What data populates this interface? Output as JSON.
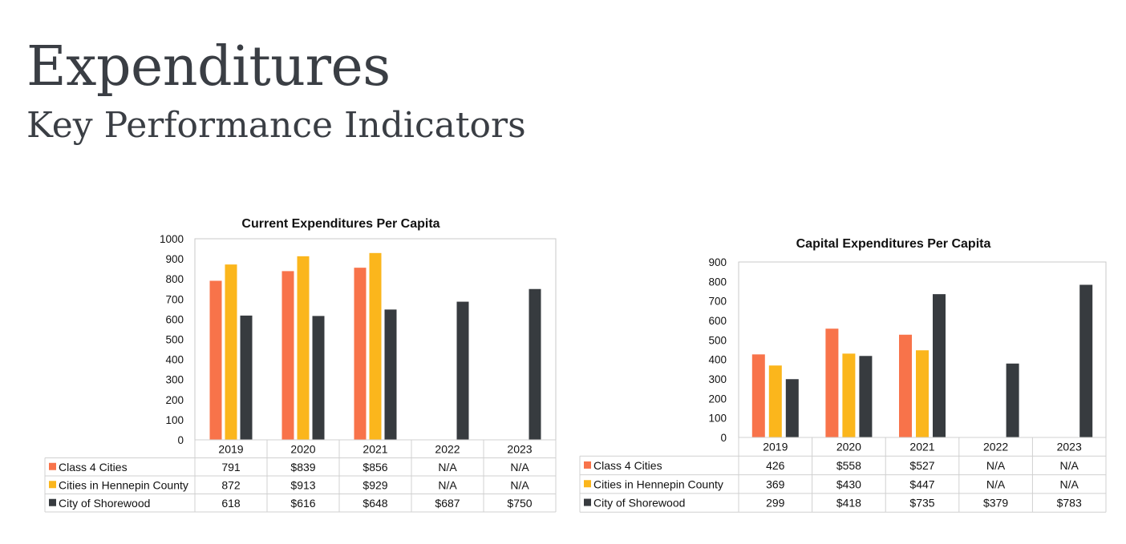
{
  "page": {
    "title": "Expenditures",
    "subtitle": "Key Performance Indicators"
  },
  "colors": {
    "class4": "#f8734a",
    "hennepin": "#fbb61c",
    "shorewood": "#373b3f"
  },
  "chart_data": [
    {
      "type": "bar",
      "title": "Current Expenditures Per Capita",
      "categories": [
        "2019",
        "2020",
        "2021",
        "2022",
        "2023"
      ],
      "ylim": [
        0,
        1000
      ],
      "yticks": [
        0,
        100,
        200,
        300,
        400,
        500,
        600,
        700,
        800,
        900,
        1000
      ],
      "grid": false,
      "legend": "data-table",
      "series": [
        {
          "name": "Class 4 Cities",
          "color": "#f8734a",
          "values": [
            791,
            839,
            856,
            null,
            null
          ],
          "labels": [
            "791",
            "$839",
            "$856",
            "N/A",
            "N/A"
          ]
        },
        {
          "name": "Cities in Hennepin County",
          "color": "#fbb61c",
          "values": [
            872,
            913,
            929,
            null,
            null
          ],
          "labels": [
            "872",
            "$913",
            "$929",
            "N/A",
            "N/A"
          ]
        },
        {
          "name": "City of Shorewood",
          "color": "#373b3f",
          "values": [
            618,
            616,
            648,
            687,
            750
          ],
          "labels": [
            "618",
            "$616",
            "$648",
            "$687",
            "$750"
          ]
        }
      ]
    },
    {
      "type": "bar",
      "title": "Capital Expenditures Per Capita",
      "categories": [
        "2019",
        "2020",
        "2021",
        "2022",
        "2023"
      ],
      "ylim": [
        0,
        900
      ],
      "yticks": [
        0,
        100,
        200,
        300,
        400,
        500,
        600,
        700,
        800,
        900
      ],
      "grid": false,
      "legend": "data-table",
      "series": [
        {
          "name": "Class 4 Cities",
          "color": "#f8734a",
          "values": [
            426,
            558,
            527,
            null,
            null
          ],
          "labels": [
            "426",
            "$558",
            "$527",
            "N/A",
            "N/A"
          ]
        },
        {
          "name": "Cities in Hennepin County",
          "color": "#fbb61c",
          "values": [
            369,
            430,
            447,
            null,
            null
          ],
          "labels": [
            "369",
            "$430",
            "$447",
            "N/A",
            "N/A"
          ]
        },
        {
          "name": "City of Shorewood",
          "color": "#373b3f",
          "values": [
            299,
            418,
            735,
            379,
            783
          ],
          "labels": [
            "299",
            "$418",
            "$735",
            "$379",
            "$783"
          ]
        }
      ]
    }
  ]
}
